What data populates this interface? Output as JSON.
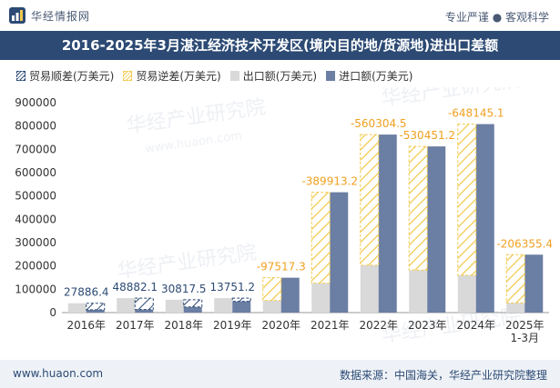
{
  "header": {
    "brand_name": "华经情报网",
    "slogan": "专业严谨 ● 客观科学",
    "title": "2016-2025年3月湛江经济技术开发区(境内目的地/货源地)进出口差额"
  },
  "footer": {
    "site": "www.huaon.com",
    "source": "数据来源：中国海关，华经产业研究院整理"
  },
  "watermark": {
    "text": "华经产业研究院",
    "url": "www.huaon.com"
  },
  "colors": {
    "header_bg": "#2c4a74",
    "surplus_border": "#2c4a74",
    "deficit": "#f2c94c",
    "export": "#d9d9d9",
    "import": "#6b7ea3",
    "label": "#f0a020",
    "surplus_label": "#2c4a74"
  },
  "chart_data": {
    "type": "bar",
    "title": "",
    "xlabel": "",
    "ylabel": "",
    "ylim": [
      0,
      900000
    ],
    "yticks": [
      0,
      100000,
      200000,
      300000,
      400000,
      500000,
      600000,
      700000,
      800000,
      900000
    ],
    "categories": [
      "2016年",
      "2017年",
      "2018年",
      "2019年",
      "2020年",
      "2021年",
      "2022年",
      "2023年",
      "2024年",
      "2025年\n1-3月"
    ],
    "series": [
      {
        "name": "贸易顺差(万美元)",
        "values": [
          27886.4,
          48882.1,
          30817.5,
          13751.2,
          null,
          null,
          null,
          null,
          null,
          null
        ]
      },
      {
        "name": "贸易逆差(万美元)",
        "values": [
          null,
          null,
          null,
          null,
          -97517.3,
          -389913.2,
          -560304.5,
          -530451.2,
          -648145.1,
          -206355.4
        ]
      },
      {
        "name": "出口额(万美元)",
        "values": [
          40000,
          62000,
          55000,
          62000,
          52000,
          126000,
          203000,
          182000,
          160000,
          42000
        ]
      },
      {
        "name": "进口额(万美元)",
        "values": [
          12113.6,
          13117.9,
          24182.5,
          48248.8,
          149517.3,
          515913.2,
          763304.5,
          712451.2,
          808145.1,
          248355.4
        ]
      }
    ],
    "data_labels": [
      "27886.4",
      "48882.1",
      "30817.5",
      "13751.2",
      "-97517.3",
      "-389913.2",
      "-560304.5",
      "-530451.2",
      "-648145.1",
      "-206355.4"
    ],
    "legend": "top-left",
    "grid": false
  }
}
